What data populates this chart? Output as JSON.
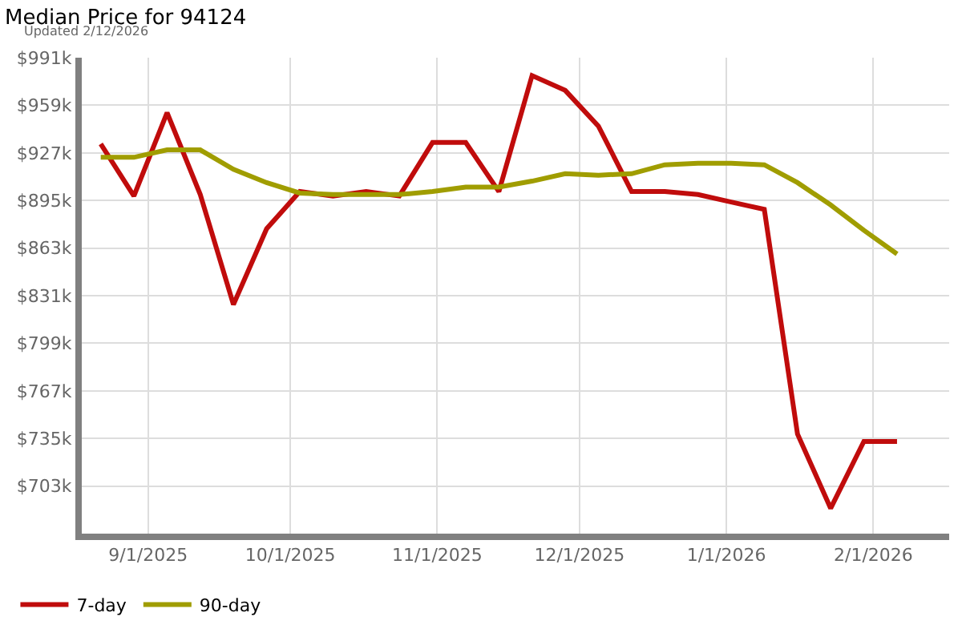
{
  "chart_data": {
    "type": "line",
    "title": "Median Price for 94124",
    "subtitle": "Updated 2/12/2026",
    "x": [
      "2025-08-22",
      "2025-08-29",
      "2025-09-05",
      "2025-09-12",
      "2025-09-19",
      "2025-09-26",
      "2025-10-03",
      "2025-10-10",
      "2025-10-17",
      "2025-10-24",
      "2025-10-31",
      "2025-11-07",
      "2025-11-14",
      "2025-11-21",
      "2025-11-28",
      "2025-12-05",
      "2025-12-12",
      "2025-12-19",
      "2025-12-26",
      "2026-01-02",
      "2026-01-09",
      "2026-01-16",
      "2026-01-23",
      "2026-01-30",
      "2026-02-06"
    ],
    "series": [
      {
        "name": "7-day",
        "color": "#c00c0c",
        "values": [
          933,
          898,
          954,
          899,
          825,
          876,
          901,
          898,
          901,
          898,
          934,
          934,
          901,
          979,
          969,
          945,
          901,
          901,
          899,
          894,
          889,
          738,
          688,
          733,
          733
        ]
      },
      {
        "name": "90-day",
        "color": "#a09d00",
        "values": [
          924,
          924,
          929,
          929,
          916,
          907,
          900,
          899,
          899,
          899,
          901,
          904,
          904,
          908,
          913,
          912,
          913,
          919,
          920,
          920,
          919,
          907,
          892,
          875,
          859
        ]
      }
    ],
    "xlim": [
      "2025-08-18",
      "2026-02-17"
    ],
    "xticks": [
      {
        "value": "2025-09-01",
        "label": "9/1/2025"
      },
      {
        "value": "2025-10-01",
        "label": "10/1/2025"
      },
      {
        "value": "2025-11-01",
        "label": "11/1/2025"
      },
      {
        "value": "2025-12-01",
        "label": "12/1/2025"
      },
      {
        "value": "2026-01-01",
        "label": "1/1/2026"
      },
      {
        "value": "2026-02-01",
        "label": "2/1/2026"
      }
    ],
    "ylim": [
      671,
      991
    ],
    "yticks": [
      {
        "value": 703,
        "label": "$703k"
      },
      {
        "value": 735,
        "label": "$735k"
      },
      {
        "value": 767,
        "label": "$767k"
      },
      {
        "value": 799,
        "label": "$799k"
      },
      {
        "value": 831,
        "label": "$831k"
      },
      {
        "value": 863,
        "label": "$863k"
      },
      {
        "value": 895,
        "label": "$895k"
      },
      {
        "value": 927,
        "label": "$927k"
      },
      {
        "value": 959,
        "label": "$959k"
      },
      {
        "value": 991,
        "label": "$991k"
      }
    ],
    "grid": true,
    "legend": "bottom left",
    "marker": "none",
    "line_style": "solid"
  }
}
